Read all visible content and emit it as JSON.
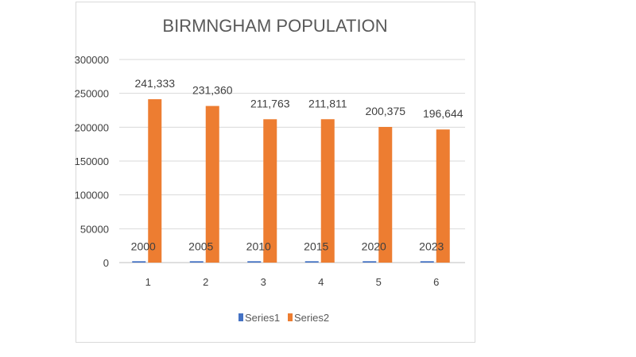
{
  "chart_data": {
    "type": "bar",
    "title": "BIRMNGHAM POPULATION",
    "categories": [
      "1",
      "2",
      "3",
      "4",
      "5",
      "6"
    ],
    "series": [
      {
        "name": "Series1",
        "color": "#4472C4",
        "values": [
          2000,
          2005,
          2010,
          2015,
          2020,
          2023
        ],
        "labels": [
          "2000",
          "2005",
          "2010",
          "2015",
          "2020",
          "2023"
        ]
      },
      {
        "name": "Series2",
        "color": "#ED7D31",
        "values": [
          241333,
          231360,
          211763,
          211811,
          200375,
          196644
        ],
        "labels": [
          "241,333",
          "231,360",
          "211,763",
          "211,811",
          "200,375",
          "196,644"
        ]
      }
    ],
    "yticks": [
      "0",
      "50000",
      "100000",
      "150000",
      "200000",
      "250000",
      "300000"
    ],
    "ylim": [
      0,
      300000
    ],
    "grid": true,
    "legend": "bottom",
    "xlabel": "",
    "ylabel": ""
  }
}
